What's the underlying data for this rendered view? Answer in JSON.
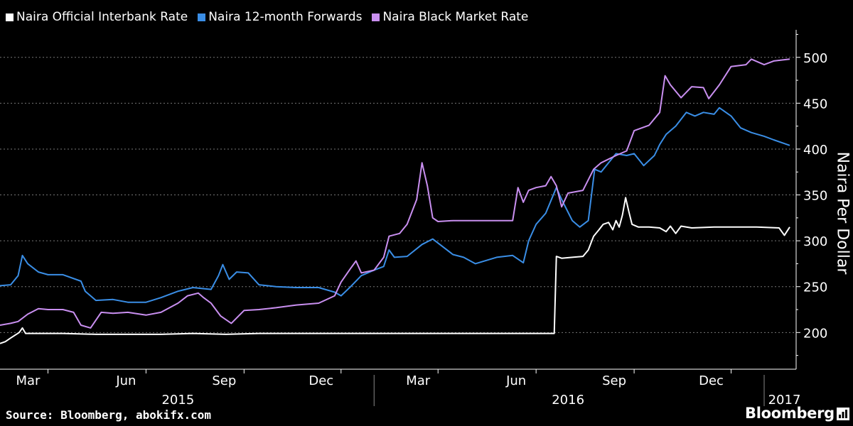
{
  "legend": [
    {
      "label": "Naira Official Interbank Rate",
      "color": "#ffffff"
    },
    {
      "label": "Naira 12-month Forwards",
      "color": "#3a8ee6"
    },
    {
      "label": "Naira Black Market Rate",
      "color": "#c98ff0"
    }
  ],
  "source": "Source: Bloomberg, abokifx.com",
  "brand": "Bloomberg",
  "chart_data": {
    "type": "line",
    "ylabel": "Naira Per Dollar",
    "ylim": [
      160,
      530
    ],
    "yticks": [
      200,
      250,
      300,
      350,
      400,
      450,
      500
    ],
    "xlim": [
      "2015-01-15",
      "2017-01-31"
    ],
    "month_ticks": [
      {
        "label": "Mar",
        "date": "2015-03-01"
      },
      {
        "label": "Jun",
        "date": "2015-06-01"
      },
      {
        "label": "Sep",
        "date": "2015-09-01"
      },
      {
        "label": "Dec",
        "date": "2015-12-01"
      },
      {
        "label": "Mar",
        "date": "2016-03-01"
      },
      {
        "label": "Jun",
        "date": "2016-06-01"
      },
      {
        "label": "Sep",
        "date": "2016-09-01"
      },
      {
        "label": "Dec",
        "date": "2016-12-01"
      }
    ],
    "year_labels": [
      {
        "label": "2015",
        "date": "2015-07-01"
      },
      {
        "label": "2016",
        "date": "2016-07-01"
      },
      {
        "label": "2017",
        "date": "2017-01-20"
      }
    ],
    "year_dividers": [
      "2016-01-01",
      "2017-01-01"
    ],
    "series": [
      {
        "name": "Naira Official Interbank Rate",
        "color": "#ffffff",
        "points": [
          [
            "2015-01-15",
            188
          ],
          [
            "2015-01-20",
            190
          ],
          [
            "2015-01-25",
            194
          ],
          [
            "2015-01-29",
            197
          ],
          [
            "2015-02-02",
            200
          ],
          [
            "2015-02-05",
            205
          ],
          [
            "2015-02-08",
            199
          ],
          [
            "2015-02-12",
            199
          ],
          [
            "2015-03-15",
            199
          ],
          [
            "2015-04-15",
            198
          ],
          [
            "2015-05-15",
            198
          ],
          [
            "2015-06-15",
            198
          ],
          [
            "2015-07-15",
            199
          ],
          [
            "2015-08-15",
            198
          ],
          [
            "2015-09-15",
            199
          ],
          [
            "2015-10-15",
            199
          ],
          [
            "2015-11-15",
            199
          ],
          [
            "2015-12-15",
            199
          ],
          [
            "2016-01-15",
            199
          ],
          [
            "2016-02-15",
            199
          ],
          [
            "2016-03-15",
            199
          ],
          [
            "2016-04-15",
            199
          ],
          [
            "2016-05-15",
            199
          ],
          [
            "2016-06-18",
            199
          ],
          [
            "2016-06-20",
            283
          ],
          [
            "2016-06-25",
            281
          ],
          [
            "2016-07-05",
            282
          ],
          [
            "2016-07-15",
            283
          ],
          [
            "2016-07-20",
            290
          ],
          [
            "2016-07-25",
            305
          ],
          [
            "2016-07-30",
            312
          ],
          [
            "2016-08-03",
            318
          ],
          [
            "2016-08-08",
            320
          ],
          [
            "2016-08-12",
            312
          ],
          [
            "2016-08-15",
            322
          ],
          [
            "2016-08-18",
            315
          ],
          [
            "2016-08-21",
            328
          ],
          [
            "2016-08-24",
            347
          ],
          [
            "2016-08-27",
            332
          ],
          [
            "2016-08-30",
            318
          ],
          [
            "2016-09-05",
            315
          ],
          [
            "2016-09-15",
            315
          ],
          [
            "2016-09-25",
            314
          ],
          [
            "2016-10-01",
            310
          ],
          [
            "2016-10-05",
            316
          ],
          [
            "2016-10-10",
            308
          ],
          [
            "2016-10-15",
            316
          ],
          [
            "2016-10-25",
            314
          ],
          [
            "2016-11-15",
            315
          ],
          [
            "2016-12-10",
            315
          ],
          [
            "2016-12-25",
            315
          ],
          [
            "2017-01-15",
            314
          ],
          [
            "2017-01-20",
            306
          ],
          [
            "2017-01-25",
            315
          ]
        ]
      },
      {
        "name": "Naira 12-month Forwards",
        "color": "#3a8ee6",
        "points": [
          [
            "2015-01-15",
            251
          ],
          [
            "2015-01-25",
            252
          ],
          [
            "2015-02-01",
            262
          ],
          [
            "2015-02-05",
            284
          ],
          [
            "2015-02-10",
            275
          ],
          [
            "2015-02-20",
            266
          ],
          [
            "2015-03-01",
            263
          ],
          [
            "2015-03-15",
            263
          ],
          [
            "2015-04-01",
            256
          ],
          [
            "2015-04-05",
            245
          ],
          [
            "2015-04-15",
            235
          ],
          [
            "2015-05-01",
            236
          ],
          [
            "2015-05-15",
            233
          ],
          [
            "2015-06-01",
            233
          ],
          [
            "2015-06-15",
            238
          ],
          [
            "2015-07-01",
            245
          ],
          [
            "2015-07-15",
            249
          ],
          [
            "2015-08-01",
            247
          ],
          [
            "2015-08-08",
            262
          ],
          [
            "2015-08-12",
            274
          ],
          [
            "2015-08-18",
            258
          ],
          [
            "2015-08-25",
            266
          ],
          [
            "2015-09-05",
            265
          ],
          [
            "2015-09-15",
            252
          ],
          [
            "2015-10-01",
            250
          ],
          [
            "2015-10-20",
            249
          ],
          [
            "2015-11-10",
            249
          ],
          [
            "2015-11-25",
            244
          ],
          [
            "2015-12-01",
            240
          ],
          [
            "2015-12-10",
            250
          ],
          [
            "2015-12-20",
            262
          ],
          [
            "2016-01-01",
            268
          ],
          [
            "2016-01-10",
            272
          ],
          [
            "2016-01-15",
            290
          ],
          [
            "2016-01-20",
            282
          ],
          [
            "2016-02-01",
            283
          ],
          [
            "2016-02-15",
            296
          ],
          [
            "2016-02-25",
            302
          ],
          [
            "2016-03-05",
            294
          ],
          [
            "2016-03-15",
            285
          ],
          [
            "2016-03-25",
            282
          ],
          [
            "2016-04-05",
            275
          ],
          [
            "2016-04-25",
            282
          ],
          [
            "2016-05-10",
            284
          ],
          [
            "2016-05-20",
            276
          ],
          [
            "2016-05-25",
            300
          ],
          [
            "2016-06-01",
            318
          ],
          [
            "2016-06-10",
            330
          ],
          [
            "2016-06-20",
            358
          ],
          [
            "2016-06-25",
            345
          ],
          [
            "2016-07-05",
            322
          ],
          [
            "2016-07-12",
            315
          ],
          [
            "2016-07-20",
            322
          ],
          [
            "2016-07-26",
            378
          ],
          [
            "2016-08-01",
            375
          ],
          [
            "2016-08-15",
            395
          ],
          [
            "2016-08-25",
            393
          ],
          [
            "2016-09-01",
            395
          ],
          [
            "2016-09-10",
            382
          ],
          [
            "2016-09-20",
            393
          ],
          [
            "2016-09-25",
            405
          ],
          [
            "2016-10-01",
            416
          ],
          [
            "2016-10-10",
            425
          ],
          [
            "2016-10-20",
            440
          ],
          [
            "2016-10-28",
            436
          ],
          [
            "2016-11-05",
            440
          ],
          [
            "2016-11-15",
            438
          ],
          [
            "2016-11-20",
            445
          ],
          [
            "2016-12-01",
            436
          ],
          [
            "2016-12-10",
            423
          ],
          [
            "2016-12-20",
            418
          ],
          [
            "2017-01-01",
            414
          ],
          [
            "2017-01-10",
            410
          ],
          [
            "2017-01-20",
            406
          ],
          [
            "2017-01-25",
            404
          ]
        ]
      },
      {
        "name": "Naira Black Market Rate",
        "color": "#c98ff0",
        "points": [
          [
            "2015-01-15",
            208
          ],
          [
            "2015-01-25",
            210
          ],
          [
            "2015-02-01",
            212
          ],
          [
            "2015-02-10",
            220
          ],
          [
            "2015-02-20",
            226
          ],
          [
            "2015-03-01",
            225
          ],
          [
            "2015-03-15",
            225
          ],
          [
            "2015-03-25",
            222
          ],
          [
            "2015-04-01",
            208
          ],
          [
            "2015-04-10",
            205
          ],
          [
            "2015-04-20",
            222
          ],
          [
            "2015-05-01",
            221
          ],
          [
            "2015-05-15",
            222
          ],
          [
            "2015-06-01",
            219
          ],
          [
            "2015-06-15",
            222
          ],
          [
            "2015-07-01",
            232
          ],
          [
            "2015-07-10",
            240
          ],
          [
            "2015-07-20",
            243
          ],
          [
            "2015-07-25",
            238
          ],
          [
            "2015-08-01",
            232
          ],
          [
            "2015-08-10",
            218
          ],
          [
            "2015-08-20",
            210
          ],
          [
            "2015-09-01",
            224
          ],
          [
            "2015-09-15",
            225
          ],
          [
            "2015-10-01",
            227
          ],
          [
            "2015-10-20",
            230
          ],
          [
            "2015-11-10",
            232
          ],
          [
            "2015-11-25",
            240
          ],
          [
            "2015-12-01",
            255
          ],
          [
            "2015-12-10",
            270
          ],
          [
            "2015-12-15",
            278
          ],
          [
            "2015-12-20",
            265
          ],
          [
            "2016-01-01",
            268
          ],
          [
            "2016-01-10",
            282
          ],
          [
            "2016-01-15",
            305
          ],
          [
            "2016-01-25",
            308
          ],
          [
            "2016-02-01",
            318
          ],
          [
            "2016-02-10",
            345
          ],
          [
            "2016-02-15",
            385
          ],
          [
            "2016-02-20",
            360
          ],
          [
            "2016-02-25",
            325
          ],
          [
            "2016-03-01",
            321
          ],
          [
            "2016-03-15",
            322
          ],
          [
            "2016-04-01",
            322
          ],
          [
            "2016-04-20",
            322
          ],
          [
            "2016-05-10",
            322
          ],
          [
            "2016-05-15",
            358
          ],
          [
            "2016-05-20",
            342
          ],
          [
            "2016-05-25",
            355
          ],
          [
            "2016-06-01",
            358
          ],
          [
            "2016-06-10",
            360
          ],
          [
            "2016-06-15",
            370
          ],
          [
            "2016-06-20",
            360
          ],
          [
            "2016-06-25",
            337
          ],
          [
            "2016-07-01",
            352
          ],
          [
            "2016-07-15",
            355
          ],
          [
            "2016-07-25",
            378
          ],
          [
            "2016-08-01",
            385
          ],
          [
            "2016-08-15",
            393
          ],
          [
            "2016-08-25",
            398
          ],
          [
            "2016-09-01",
            420
          ],
          [
            "2016-09-15",
            426
          ],
          [
            "2016-09-25",
            440
          ],
          [
            "2016-09-30",
            480
          ],
          [
            "2016-10-05",
            470
          ],
          [
            "2016-10-15",
            456
          ],
          [
            "2016-10-25",
            468
          ],
          [
            "2016-11-05",
            467
          ],
          [
            "2016-11-10",
            455
          ],
          [
            "2016-11-20",
            470
          ],
          [
            "2016-12-01",
            490
          ],
          [
            "2016-12-15",
            492
          ],
          [
            "2016-12-20",
            498
          ],
          [
            "2017-01-01",
            492
          ],
          [
            "2017-01-10",
            496
          ],
          [
            "2017-01-25",
            498
          ]
        ]
      }
    ]
  }
}
